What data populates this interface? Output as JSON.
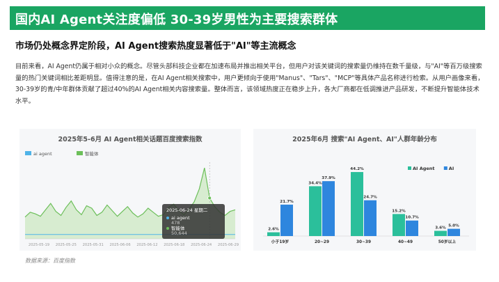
{
  "title": "国内AI Agent关注度偏低 30-39岁男性为主要搜索群体",
  "subtitle": "市场仍处概念界定阶段，AI Agent搜索热度显著低于\"AI\"等主流概念",
  "paragraph": "目前来看，AI Agent仍属于相对小众的概念。尽管头部科技企业都在加速布局并推出相关平台，但用户对该关键词的搜索量仍维持在数千量级，与\"AI\"等百万级搜索量的热门关键词相比差距明显。值得注意的是，在AI Agent相关搜索中，用户更倾向于使用\"Manus\"、\"Tars\"、\"MCP\"等具体产品名称进行检索。从用户画像来看，30-39岁的青/中年群体贡献了超过40%的AI Agent相关内容搜索量。整体而言，该领域热度正在稳步上升，各大厂商都在低调推进产品研发，不断提升智能体技术水平。",
  "source": "数据来源：百度指数",
  "colors": {
    "green": "#1aa562",
    "teal": "#2bbf9b",
    "blue": "#2e86de",
    "lineBlue": "#4fb3e8",
    "areaGreen": "#6cbf5a"
  },
  "chart_data": [
    {
      "type": "area",
      "title": "2025年5-6月 AI Agent相关话题百度搜索指数",
      "legend": [
        "ai agent",
        "智能体"
      ],
      "x_ticks": [
        "2025-05-19",
        "2025-05-25",
        "2025-05-31",
        "2025-06-06",
        "2025-06-12",
        "2025-06-18",
        "2025-06-24",
        "2025-06-29"
      ],
      "series": [
        {
          "name": "ai agent",
          "values": [
            420,
            440,
            460,
            450,
            430,
            470,
            480,
            470,
            460,
            440,
            450,
            470,
            480,
            470,
            460,
            450,
            470,
            480,
            470,
            450,
            440,
            460,
            470,
            480,
            470,
            460,
            450,
            470,
            480,
            470,
            460,
            450,
            470,
            480,
            470,
            460,
            478,
            470,
            460,
            450,
            470,
            480
          ]
        },
        {
          "name": "智能体",
          "values": [
            27000,
            33000,
            31000,
            28000,
            36000,
            44000,
            34000,
            29000,
            39000,
            47000,
            36000,
            30000,
            41000,
            38000,
            29000,
            33000,
            42000,
            35000,
            28000,
            34000,
            40000,
            32000,
            27000,
            31000,
            38000,
            33000,
            28000,
            30000,
            39000,
            43000,
            35000,
            30000,
            37000,
            46000,
            62000,
            88000,
            50644,
            40000,
            33000,
            29000,
            34000,
            36000
          ]
        }
      ],
      "tooltip": {
        "date": "2025-06-24 星期二",
        "rows": [
          {
            "name": "ai agent",
            "value": "478"
          },
          {
            "name": "智能体",
            "value": "50,644"
          }
        ]
      }
    },
    {
      "type": "bar",
      "title": "2025年6月 搜索\"AI Agent、AI\"人群年龄分布",
      "categories": [
        "小于19岁",
        "20~29",
        "30~39",
        "40~49",
        "50岁以上"
      ],
      "series": [
        {
          "name": "AI Agent",
          "values": [
            2.6,
            34.4,
            44.2,
            15.2,
            3.6
          ]
        },
        {
          "name": "AI",
          "values": [
            21.7,
            37.9,
            24.7,
            10.7,
            5.0
          ]
        }
      ],
      "labels": [
        [
          "2.6%",
          "34.4%",
          "44.2%",
          "15.2%",
          "3.6%"
        ],
        [
          "21.7%",
          "37.9%",
          "24.7%",
          "10.7%",
          "5.0%"
        ]
      ],
      "ylim": [
        0,
        50
      ]
    }
  ]
}
